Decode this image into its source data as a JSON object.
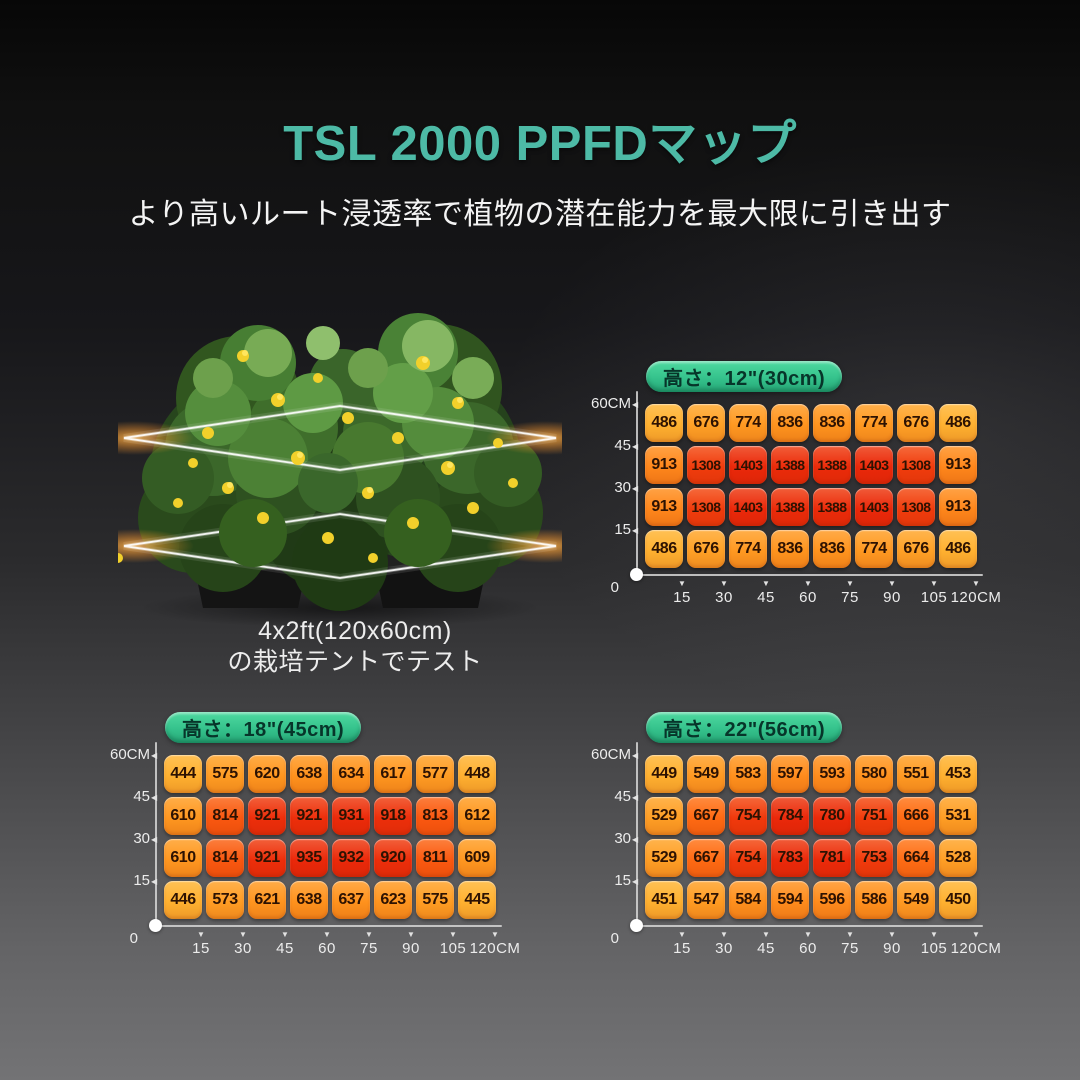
{
  "header": {
    "title": "TSL 2000 PPFDマップ",
    "subtitle": "より高いルート浸透率で植物の潜在能力を最大限に引き出す"
  },
  "plant": {
    "caption_line1": "4x2ft(120x60cm)",
    "caption_line2": "の栽培テントでテスト"
  },
  "colors": {
    "accent_teal": "#4dbaa6",
    "pill_green": "#35c28c",
    "heat_low": "#ffb130",
    "heat_mid": "#ff941e",
    "heat_high": "#ff6612",
    "heat_max": "#eb280a",
    "axis": "#d6d6d6"
  },
  "chart_data": [
    {
      "type": "heatmap",
      "title": "高さ：12\"(30cm)",
      "x_ticks": [
        "15",
        "30",
        "45",
        "60",
        "75",
        "90",
        "105",
        "120CM"
      ],
      "y_ticks": [
        "60CM",
        "45",
        "30",
        "15",
        "0"
      ],
      "x_range_cm": [
        0,
        120
      ],
      "y_range_cm": [
        0,
        60
      ],
      "rows": [
        [
          486,
          676,
          774,
          836,
          836,
          774,
          676,
          486
        ],
        [
          913,
          1308,
          1403,
          1388,
          1388,
          1403,
          1308,
          913
        ],
        [
          913,
          1308,
          1403,
          1388,
          1388,
          1403,
          1308,
          913
        ],
        [
          486,
          676,
          774,
          836,
          836,
          774,
          676,
          486
        ]
      ]
    },
    {
      "type": "heatmap",
      "title": "高さ：18\"(45cm)",
      "x_ticks": [
        "15",
        "30",
        "45",
        "60",
        "75",
        "90",
        "105",
        "120CM"
      ],
      "y_ticks": [
        "60CM",
        "45",
        "30",
        "15",
        "0"
      ],
      "x_range_cm": [
        0,
        120
      ],
      "y_range_cm": [
        0,
        60
      ],
      "rows": [
        [
          444,
          575,
          620,
          638,
          634,
          617,
          577,
          448
        ],
        [
          610,
          814,
          921,
          921,
          931,
          918,
          813,
          612
        ],
        [
          610,
          814,
          921,
          935,
          932,
          920,
          811,
          609
        ],
        [
          446,
          573,
          621,
          638,
          637,
          623,
          575,
          445
        ]
      ]
    },
    {
      "type": "heatmap",
      "title": "高さ：22\"(56cm)",
      "x_ticks": [
        "15",
        "30",
        "45",
        "60",
        "75",
        "90",
        "105",
        "120CM"
      ],
      "y_ticks": [
        "60CM",
        "45",
        "30",
        "15",
        "0"
      ],
      "x_range_cm": [
        0,
        120
      ],
      "y_range_cm": [
        0,
        60
      ],
      "rows": [
        [
          449,
          549,
          583,
          597,
          593,
          580,
          551,
          453
        ],
        [
          529,
          667,
          754,
          784,
          780,
          751,
          666,
          531
        ],
        [
          529,
          667,
          754,
          783,
          781,
          753,
          664,
          528
        ],
        [
          451,
          547,
          584,
          594,
          596,
          586,
          549,
          450
        ]
      ]
    }
  ]
}
